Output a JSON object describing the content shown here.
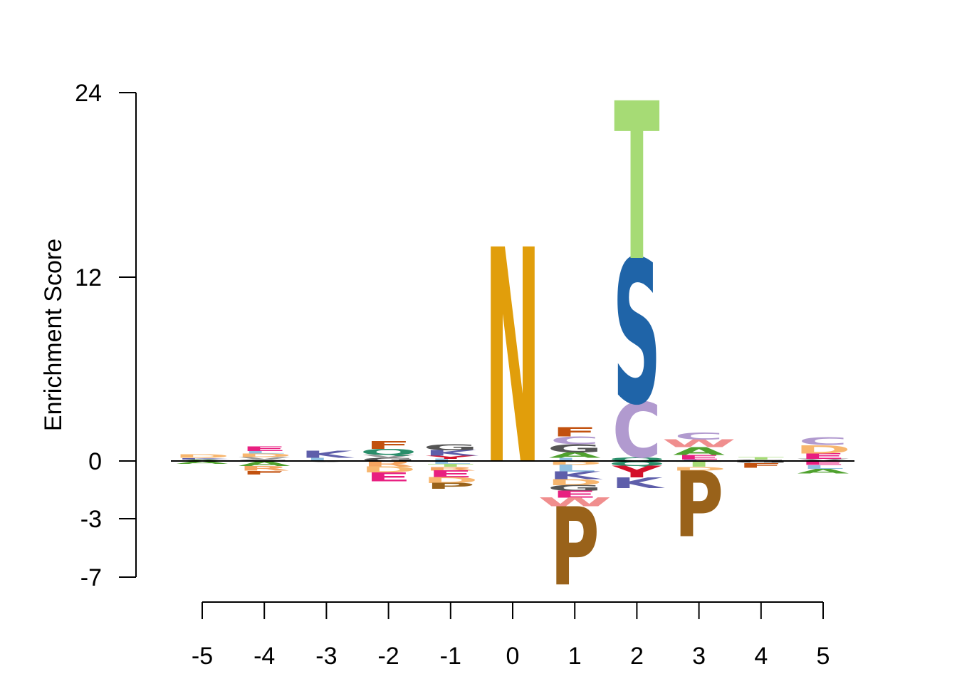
{
  "chart_data": {
    "type": "sequence-logo",
    "ylabel": "Enrichment Score",
    "xlabel": "",
    "x_positions": [
      -5,
      -4,
      -3,
      -2,
      -1,
      0,
      1,
      2,
      3,
      4,
      5
    ],
    "x_tick_labels": [
      "-5",
      "-4",
      "-3",
      "-2",
      "-1",
      "0",
      "1",
      "2",
      "3",
      "4",
      "5"
    ],
    "y_tick_values": [
      24,
      12,
      0,
      -3,
      -7
    ],
    "y_tick_labels": [
      "24",
      "12",
      "0",
      "-3",
      "-7"
    ],
    "ylim": [
      -7,
      24
    ],
    "baseline": 0,
    "colors": {
      "N": "#E19E0B",
      "T": "#A6DB75",
      "S": "#1F64A8",
      "C": "#B19ACF",
      "P": "#99621A",
      "F": "#C2510F",
      "E": "#E81F80",
      "W": "#F08E8E",
      "K": "#5E5EAA",
      "G": "#555555",
      "Q": "#2A8E6A",
      "A": "#4FA12E",
      "D": "#F7B66E",
      "Y": "#D3102A",
      "L": "#8FBFE0",
      "V": "#999999",
      "R": "#F4A460",
      "M": "#8E4C9E",
      "H": "#4D8C8C",
      "I": "#6BAF3E"
    },
    "positions": [
      {
        "pos": -5,
        "up": [
          [
            "A",
            0.1
          ],
          [
            "K",
            0.1
          ],
          [
            "D",
            0.25
          ]
        ],
        "down": [
          [
            "A",
            0.15
          ]
        ]
      },
      {
        "pos": -4,
        "up": [
          [
            "G",
            0.1
          ],
          [
            "V",
            0.15
          ],
          [
            "D",
            0.25
          ],
          [
            "L",
            0.15
          ],
          [
            "E",
            0.3
          ]
        ],
        "down": [
          [
            "A",
            0.25
          ],
          [
            "R",
            0.25
          ],
          [
            "F",
            0.2
          ]
        ]
      },
      {
        "pos": -3,
        "up": [
          [
            "L",
            0.2
          ],
          [
            "K",
            0.45
          ]
        ],
        "down": [
          [
            "V",
            0.05
          ]
        ]
      },
      {
        "pos": -2,
        "up": [
          [
            "G",
            0.2
          ],
          [
            "V",
            0.2
          ],
          [
            "Q",
            0.4
          ],
          [
            "F",
            0.5
          ]
        ],
        "down": [
          [
            "R",
            0.3
          ],
          [
            "D",
            0.3
          ],
          [
            "E",
            0.45
          ]
        ]
      },
      {
        "pos": -1,
        "up": [
          [
            "L",
            0.15
          ],
          [
            "Y",
            0.2
          ],
          [
            "K",
            0.35
          ],
          [
            "G",
            0.4
          ]
        ],
        "down": [
          [
            "L",
            0.15
          ],
          [
            "T",
            0.15
          ],
          [
            "R",
            0.2
          ],
          [
            "E",
            0.35
          ],
          [
            "D",
            0.3
          ],
          [
            "P",
            0.3
          ]
        ]
      },
      {
        "pos": 0,
        "up": [
          [
            "N",
            14
          ]
        ],
        "down": []
      },
      {
        "pos": 1,
        "up": [
          [
            "L",
            0.2
          ],
          [
            "A",
            0.35
          ],
          [
            "G",
            0.55
          ],
          [
            "C",
            0.5
          ],
          [
            "F",
            0.6
          ]
        ],
        "down": [
          [
            "D",
            0.2
          ],
          [
            "L",
            0.35
          ],
          [
            "K",
            0.4
          ],
          [
            "D",
            0.3
          ],
          [
            "G",
            0.3
          ],
          [
            "E",
            0.35
          ],
          [
            "W",
            0.45
          ],
          [
            "P",
            5.15
          ]
        ]
      },
      {
        "pos": 2,
        "up": [
          [
            "Q",
            0.25
          ],
          [
            "C",
            3.6
          ],
          [
            "S",
            9.4
          ],
          [
            "T",
            10.25
          ]
        ],
        "down": [
          [
            "Q",
            0.25
          ],
          [
            "Y",
            0.6
          ],
          [
            "K",
            0.55
          ]
        ]
      },
      {
        "pos": 3,
        "up": [
          [
            "L",
            0.1
          ],
          [
            "E",
            0.3
          ],
          [
            "A",
            0.5
          ],
          [
            "W",
            0.5
          ],
          [
            "C",
            0.45
          ]
        ],
        "down": [
          [
            "T",
            0.3
          ],
          [
            "D",
            0.2
          ],
          [
            "P",
            3.7
          ]
        ]
      },
      {
        "pos": 4,
        "up": [
          [
            "G",
            0.1
          ],
          [
            "T",
            0.15
          ]
        ],
        "down": [
          [
            "G",
            0.1
          ],
          [
            "F",
            0.25
          ]
        ]
      },
      {
        "pos": 5,
        "up": [
          [
            "V",
            0.15
          ],
          [
            "E",
            0.35
          ],
          [
            "D",
            0.55
          ],
          [
            "C",
            0.5
          ]
        ],
        "down": [
          [
            "E",
            0.2
          ],
          [
            "L",
            0.2
          ],
          [
            "A",
            0.25
          ]
        ]
      }
    ]
  }
}
